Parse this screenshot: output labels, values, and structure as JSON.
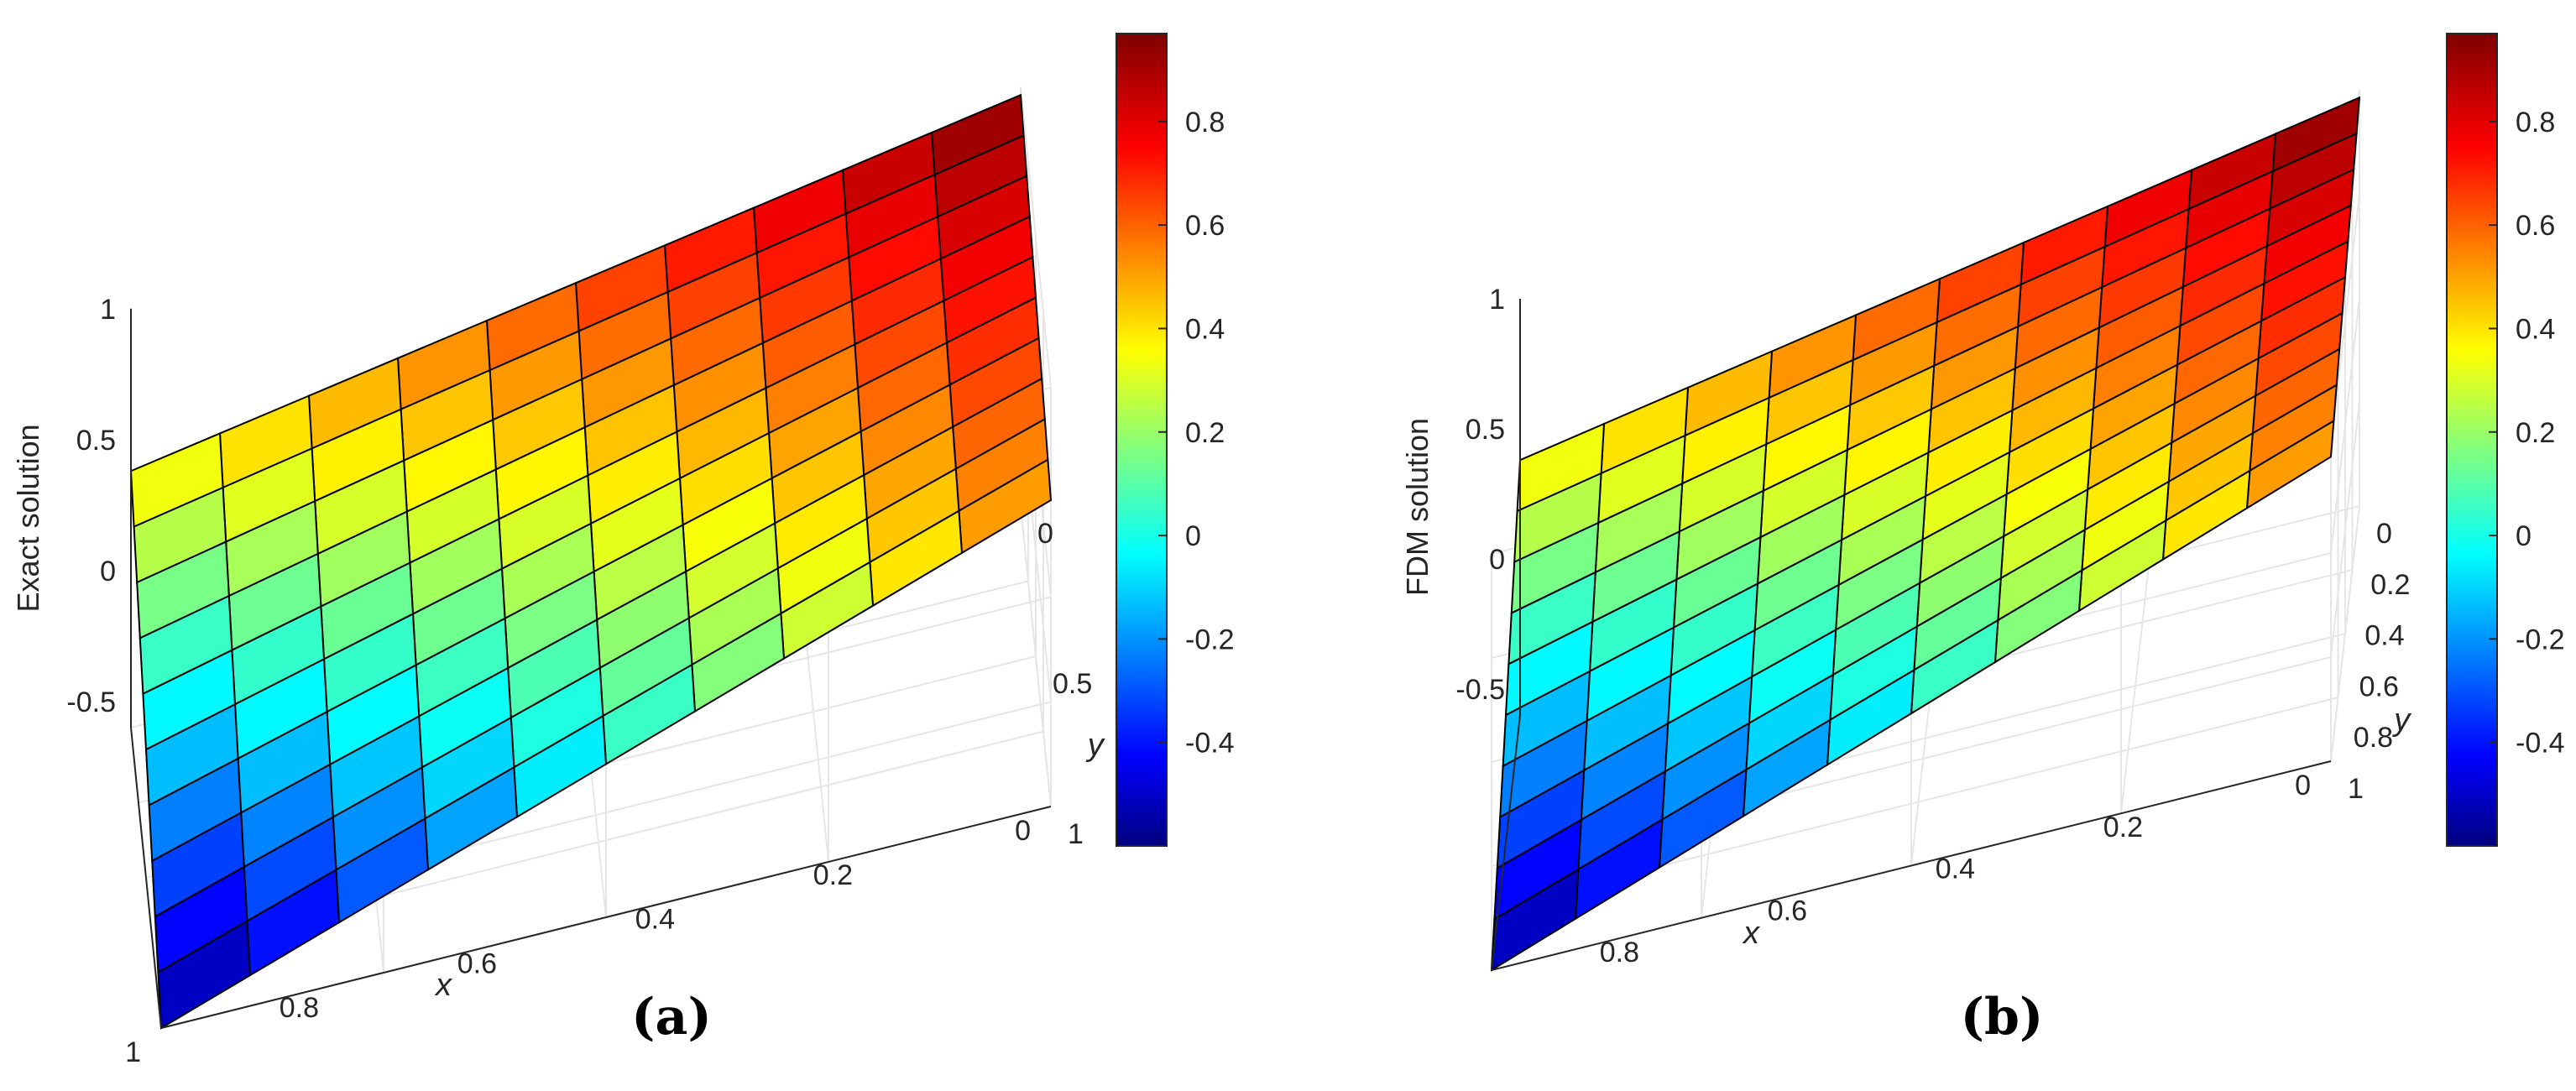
{
  "colormap_name": "jet",
  "chart_data": [
    {
      "type": "surface",
      "caption": "(a)",
      "zlabel": "Exact solution",
      "xlabel": "x",
      "ylabel": "y",
      "xlim": [
        0,
        1
      ],
      "ylim": [
        0,
        1
      ],
      "zlim": [
        -0.6,
        1
      ],
      "x_ticks": [
        "0",
        "0.2",
        "0.4",
        "0.6",
        "0.8",
        "1"
      ],
      "y_ticks": [
        "0",
        "0.5",
        "1"
      ],
      "z_ticks": [
        "-0.5",
        "0",
        "0.5",
        "1"
      ],
      "colorbar_ticks": [
        "0.8",
        "0.6",
        "0.4",
        "0.2",
        "0",
        "-0.2",
        "-0.4"
      ],
      "clim": [
        -0.6,
        0.97
      ],
      "corner_values": {
        "x0_y0": 0.97,
        "x1_y0": 0.38,
        "x0_y1": 0.57,
        "x1_y1": -0.6
      },
      "grid": true
    },
    {
      "type": "surface",
      "caption": "(b)",
      "zlabel": "FDM solution",
      "xlabel": "x",
      "ylabel": "y",
      "xlim": [
        0,
        1
      ],
      "ylim": [
        0,
        1
      ],
      "zlim": [
        -0.6,
        1
      ],
      "x_ticks": [
        "0",
        "0.2",
        "0.4",
        "0.6",
        "0.8"
      ],
      "y_ticks": [
        "0",
        "0.2",
        "0.4",
        "0.6",
        "0.8",
        "1"
      ],
      "z_ticks": [
        "-0.5",
        "0",
        "0.5",
        "1"
      ],
      "colorbar_ticks": [
        "0.8",
        "0.6",
        "0.4",
        "0.2",
        "0",
        "-0.2",
        "-0.4"
      ],
      "clim": [
        -0.6,
        0.97
      ],
      "corner_values": {
        "x0_y0": 0.97,
        "x1_y0": 0.38,
        "x0_y1": 0.57,
        "x1_y1": -0.6
      },
      "grid": true
    }
  ]
}
